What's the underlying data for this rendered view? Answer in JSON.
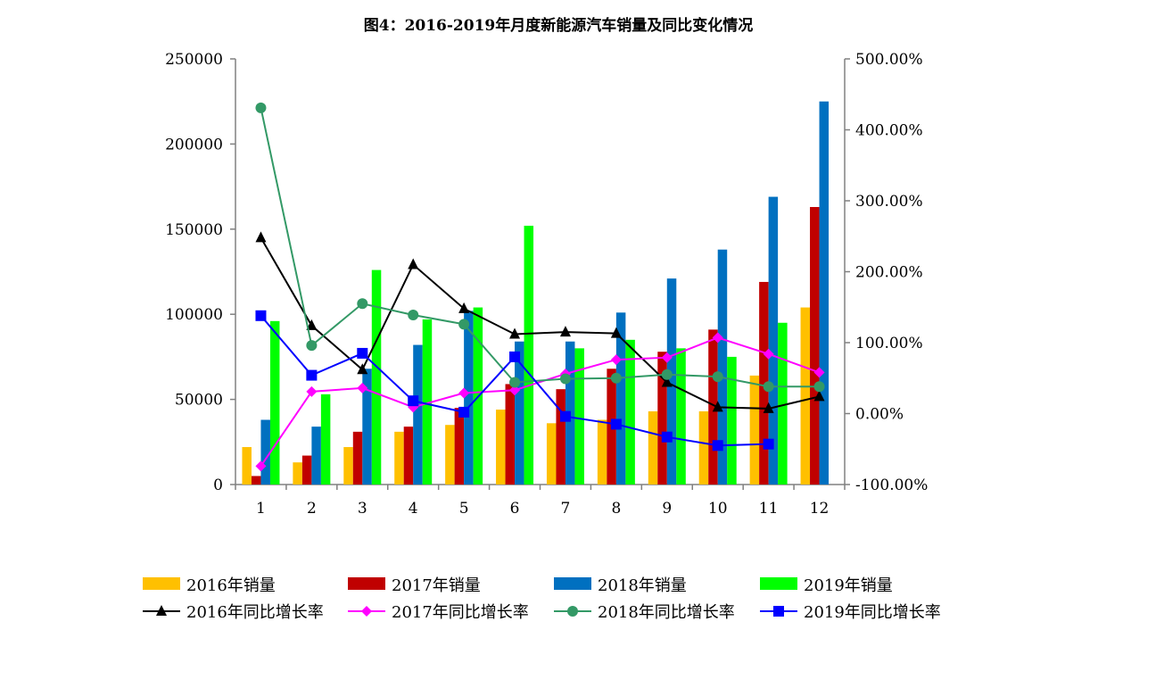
{
  "chart_data": {
    "type": "bar",
    "title": "图4：2016-2019年月度新能源汽车销量及同比变化情况",
    "categories": [
      "1",
      "2",
      "3",
      "4",
      "5",
      "6",
      "7",
      "8",
      "9",
      "10",
      "11",
      "12"
    ],
    "ylim": [
      0,
      250000
    ],
    "y_ticks": [
      "0",
      "50000",
      "100000",
      "150000",
      "200000",
      "250000"
    ],
    "y2lim": [
      -1.0,
      5.0
    ],
    "y2_ticks": [
      "-100.00%",
      "0.00%",
      "100.00%",
      "200.00%",
      "300.00%",
      "400.00%",
      "500.00%"
    ],
    "grid": false,
    "legend_position": "bottom",
    "bar_series": [
      {
        "name": "2016年销量",
        "color": "#FFC000",
        "values": [
          22000,
          13000,
          22000,
          31000,
          35000,
          44000,
          36000,
          38000,
          43000,
          43000,
          64000,
          104000
        ]
      },
      {
        "name": "2017年销量",
        "color": "#C00000",
        "values": [
          5000,
          17000,
          31000,
          34000,
          45000,
          59000,
          56000,
          68000,
          78000,
          91000,
          119000,
          163000
        ]
      },
      {
        "name": "2018年销量",
        "color": "#0070C0",
        "values": [
          38000,
          34000,
          68000,
          82000,
          102000,
          84000,
          84000,
          101000,
          121000,
          138000,
          169000,
          225000
        ]
      },
      {
        "name": "2019年销量",
        "color": "#00FF00",
        "values": [
          96000,
          53000,
          126000,
          97000,
          104000,
          152000,
          80000,
          85000,
          80000,
          75000,
          95000,
          null
        ]
      }
    ],
    "line_series": [
      {
        "name": "2016年同比增长率",
        "color": "#000000",
        "marker": "triangle",
        "values": [
          2.48,
          1.24,
          0.62,
          2.1,
          1.48,
          1.12,
          1.15,
          1.13,
          0.44,
          0.09,
          0.07,
          0.24
        ]
      },
      {
        "name": "2017年同比增长率",
        "color": "#FF00FF",
        "marker": "diamond",
        "values": [
          -0.74,
          0.31,
          0.36,
          0.09,
          0.29,
          0.33,
          0.56,
          0.76,
          0.79,
          1.07,
          0.84,
          0.58
        ]
      },
      {
        "name": "2018年同比增长率",
        "color": "#339966",
        "marker": "circle",
        "values": [
          4.31,
          0.96,
          1.55,
          1.39,
          1.26,
          0.44,
          0.49,
          0.5,
          0.55,
          0.52,
          0.38,
          0.38
        ]
      },
      {
        "name": "2019年同比增长率",
        "color": "#0000FF",
        "marker": "square",
        "values": [
          1.38,
          0.54,
          0.85,
          0.18,
          0.02,
          0.8,
          -0.04,
          -0.15,
          -0.33,
          -0.45,
          -0.43,
          null
        ]
      }
    ]
  }
}
